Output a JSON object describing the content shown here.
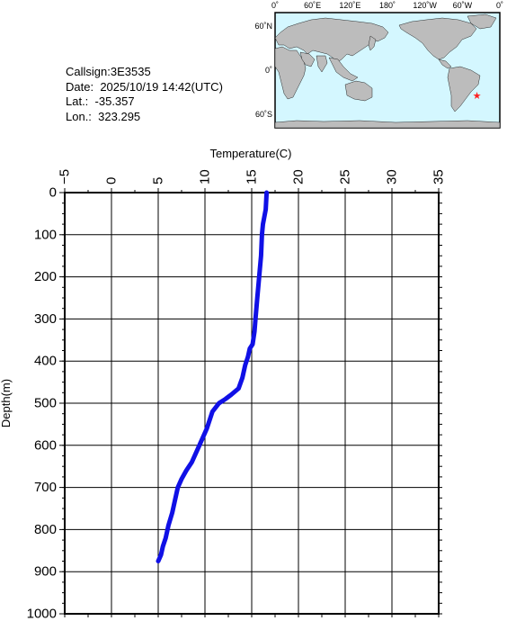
{
  "station": {
    "callsign_label": "Callsign:",
    "callsign": "3E3535",
    "date_label": "Date:",
    "date": "2025/10/19 14:42(UTC)",
    "lat_label": "Lat.:",
    "lat": "-35.357",
    "lon_label": "Lon.:",
    "lon": "323.295"
  },
  "map": {
    "top_labels": [
      "0˚",
      "60˚E",
      "120˚E",
      "180˚",
      "120˚W",
      "60˚W",
      "0˚"
    ],
    "side_labels": [
      "60˚N",
      "0˚",
      "60˚S"
    ],
    "lon_range": [
      0,
      360
    ],
    "lat_range": [
      -78,
      78
    ],
    "marker": {
      "lon": 323.295,
      "lat": -35.357,
      "symbol": "★"
    },
    "ocean_color": "#d4f7ff",
    "land_color": "#bcbcbc",
    "marker_color": "#ff2020"
  },
  "chart_data": {
    "type": "line",
    "title": "",
    "xlabel": "Temperature(C)",
    "ylabel": "Depth(m)",
    "xlim": [
      -5,
      35
    ],
    "ylim": [
      0,
      1000
    ],
    "x_ticks": [
      "−5",
      "0",
      "5",
      "10",
      "15",
      "20",
      "25",
      "30",
      "35"
    ],
    "y_ticks": [
      "0",
      "100",
      "200",
      "300",
      "400",
      "500",
      "600",
      "700",
      "800",
      "900",
      "1000"
    ],
    "grid": true,
    "line_color": "#1010e6",
    "series": [
      {
        "temperature": [
          16.6,
          16.5,
          16.2,
          16.1,
          16.0,
          15.8,
          15.6,
          15.4,
          15.3,
          15.1,
          14.8,
          14.6,
          14.3,
          14.0,
          13.6,
          12.8,
          12.2,
          11.5,
          10.8,
          10.2,
          9.4,
          8.6,
          8.0,
          7.5,
          7.1,
          6.8,
          6.5,
          6.1,
          5.8,
          5.5,
          5.3,
          5.0
        ],
        "depth": [
          0,
          40,
          75,
          100,
          150,
          200,
          250,
          300,
          330,
          360,
          370,
          390,
          410,
          440,
          465,
          480,
          490,
          500,
          520,
          560,
          600,
          640,
          660,
          680,
          700,
          730,
          760,
          790,
          820,
          840,
          860,
          875
        ]
      }
    ]
  }
}
